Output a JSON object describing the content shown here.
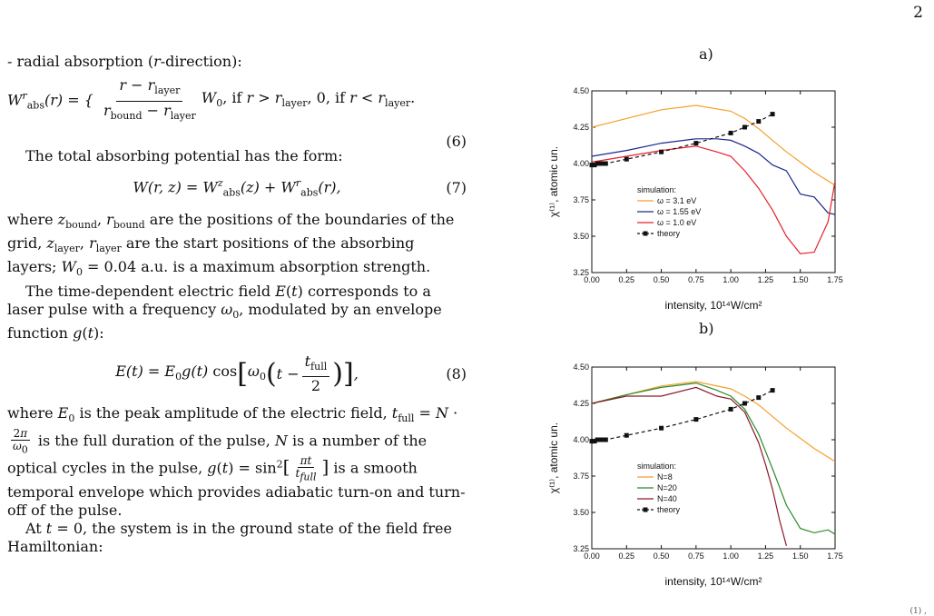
{
  "page_number": "2",
  "corner_mark": "(1) ,",
  "text": {
    "radial_intro": "- radial absorption (r-direction):",
    "eq6_label": "(6)",
    "total_potential": "The total absorbing potential has the form:",
    "eq7_label": "(7)",
    "where_z": "where z_bound, r_bound are the positions of the boundaries of the grid, z_layer, r_layer are the start positions of the absorbing layers; W_0 = 0.04 a.u. is a maximum absorption strength.",
    "time_field": "The time-dependent electric field E(t) corresponds to a laser pulse with a frequency ω_0, modulated by an envelope function g(t):",
    "eq8_label": "(8)",
    "where_e": "where E_0 is the peak amplitude of the electric field, t_full = N · 2π/ω_0 is the full duration of the pulse, N is a number of the optical cycles in the pulse, g(t) = sin²[πt/t_full] is a smooth temporal envelope which provides adiabatic turn-on and turn-off of the pulse.",
    "ground_state": "At t = 0, the system is in the ground state of the field free Hamiltonian:"
  },
  "chart_data": [
    {
      "panel": "a)",
      "type": "line",
      "xlabel": "intensity, 10¹⁴W/cm²",
      "ylabel": "χ⁽¹⁾, atomic un.",
      "xlim": [
        0.0,
        1.75
      ],
      "ylim": [
        3.25,
        4.5
      ],
      "xticks": [
        "0.00",
        "0.25",
        "0.50",
        "0.75",
        "1.00",
        "1.25",
        "1.50",
        "1.75"
      ],
      "yticks": [
        "3.25",
        "3.50",
        "3.75",
        "4.00",
        "4.25",
        "4.50"
      ],
      "legend_title": "simulation:",
      "legend_position": "lower-left",
      "series": [
        {
          "name": "ω = 3.1 eV",
          "color": "#f5a02a",
          "style": "solid",
          "x": [
            0,
            0.25,
            0.5,
            0.75,
            1.0,
            1.1,
            1.2,
            1.3,
            1.4,
            1.5,
            1.6,
            1.75
          ],
          "y": [
            4.25,
            4.31,
            4.37,
            4.4,
            4.36,
            4.31,
            4.24,
            4.16,
            4.08,
            4.01,
            3.94,
            3.85
          ]
        },
        {
          "name": "ω = 1.55 eV",
          "color": "#1a2a8a",
          "style": "solid",
          "x": [
            0,
            0.25,
            0.5,
            0.75,
            0.9,
            1.0,
            1.1,
            1.2,
            1.3,
            1.4,
            1.5,
            1.6,
            1.7,
            1.75
          ],
          "y": [
            4.05,
            4.09,
            4.14,
            4.17,
            4.17,
            4.16,
            4.12,
            4.07,
            3.99,
            3.95,
            3.79,
            3.77,
            3.66,
            3.65
          ]
        },
        {
          "name": "ω = 1.0 eV",
          "color": "#e5202a",
          "style": "solid",
          "x": [
            0,
            0.25,
            0.5,
            0.75,
            0.9,
            1.0,
            1.1,
            1.2,
            1.3,
            1.4,
            1.5,
            1.6,
            1.7,
            1.75
          ],
          "y": [
            4.01,
            4.05,
            4.09,
            4.12,
            4.08,
            4.05,
            3.95,
            3.83,
            3.68,
            3.5,
            3.38,
            3.39,
            3.6,
            3.88
          ]
        },
        {
          "name": "theory",
          "color": "#111111",
          "style": "dashed-square",
          "x": [
            0,
            0.02,
            0.04,
            0.06,
            0.08,
            0.1,
            0.25,
            0.5,
            0.75,
            1.0,
            1.1,
            1.2,
            1.3
          ],
          "y": [
            3.99,
            3.99,
            4.0,
            4.0,
            4.0,
            4.0,
            4.03,
            4.08,
            4.14,
            4.21,
            4.25,
            4.29,
            4.34
          ]
        }
      ]
    },
    {
      "panel": "b)",
      "type": "line",
      "xlabel": "intensity, 10¹⁴W/cm²",
      "ylabel": "χ⁽¹⁾, atomic un.",
      "xlim": [
        0.0,
        1.75
      ],
      "ylim": [
        3.25,
        4.5
      ],
      "xticks": [
        "0.00",
        "0.25",
        "0.50",
        "0.75",
        "1.00",
        "1.25",
        "1.50",
        "1.75"
      ],
      "yticks": [
        "3.25",
        "3.50",
        "3.75",
        "4.00",
        "4.25",
        "4.50"
      ],
      "legend_title": "simulation:",
      "legend_position": "lower-left",
      "series": [
        {
          "name": "N=8",
          "color": "#f5a02a",
          "style": "solid",
          "x": [
            0,
            0.25,
            0.5,
            0.75,
            1.0,
            1.1,
            1.2,
            1.3,
            1.4,
            1.5,
            1.6,
            1.75
          ],
          "y": [
            4.25,
            4.31,
            4.37,
            4.4,
            4.35,
            4.3,
            4.24,
            4.16,
            4.08,
            4.01,
            3.94,
            3.85
          ]
        },
        {
          "name": "N=20",
          "color": "#2a8a2a",
          "style": "solid",
          "x": [
            0,
            0.25,
            0.5,
            0.75,
            0.9,
            1.0,
            1.1,
            1.2,
            1.3,
            1.4,
            1.5,
            1.6,
            1.7,
            1.75
          ],
          "y": [
            4.25,
            4.31,
            4.36,
            4.39,
            4.34,
            4.3,
            4.21,
            4.04,
            3.8,
            3.55,
            3.39,
            3.36,
            3.38,
            3.35
          ]
        },
        {
          "name": "N=40",
          "color": "#8a1a2a",
          "style": "solid",
          "x": [
            0,
            0.25,
            0.5,
            0.75,
            0.9,
            1.0,
            1.1,
            1.2,
            1.25,
            1.3,
            1.35,
            1.4
          ],
          "y": [
            4.25,
            4.3,
            4.3,
            4.36,
            4.3,
            4.28,
            4.19,
            3.98,
            3.83,
            3.66,
            3.45,
            3.27
          ]
        },
        {
          "name": "theory",
          "color": "#111111",
          "style": "dashed-square",
          "x": [
            0,
            0.02,
            0.04,
            0.06,
            0.08,
            0.1,
            0.25,
            0.5,
            0.75,
            1.0,
            1.1,
            1.2,
            1.3
          ],
          "y": [
            3.99,
            3.99,
            4.0,
            4.0,
            4.0,
            4.0,
            4.03,
            4.08,
            4.14,
            4.21,
            4.25,
            4.29,
            4.34
          ]
        }
      ]
    }
  ]
}
